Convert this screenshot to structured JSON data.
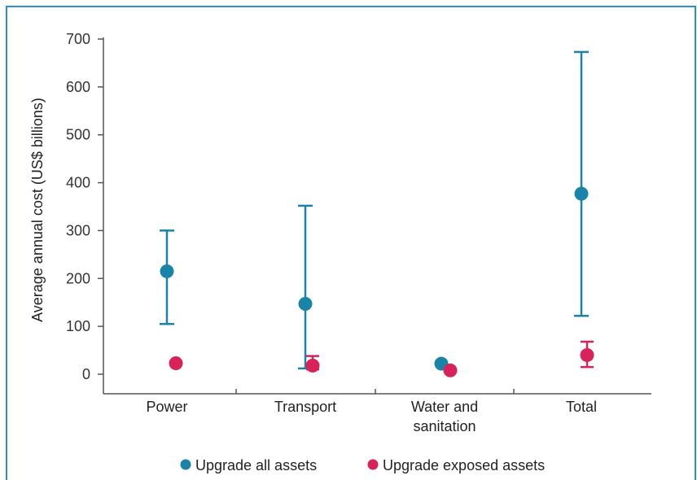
{
  "chart_data": {
    "type": "scatter",
    "ylabel": "Average annual cost (US$ billions)",
    "ylim": [
      0,
      700
    ],
    "yticks": [
      0,
      100,
      200,
      300,
      400,
      500,
      600,
      700
    ],
    "categories": [
      "Power",
      "Transport",
      "Water and sanitation",
      "Total"
    ],
    "category_lines": [
      [
        "Power"
      ],
      [
        "Transport"
      ],
      [
        "Water and",
        "sanitation"
      ],
      [
        "Total"
      ]
    ],
    "grid": false,
    "legend_position": "bottom",
    "series": [
      {
        "name": "Upgrade all assets",
        "color": "#1a84a8",
        "values": [
          215,
          147,
          22,
          377
        ],
        "low": [
          105,
          12,
          null,
          122
        ],
        "high": [
          300,
          352,
          null,
          673
        ]
      },
      {
        "name": "Upgrade exposed assets",
        "color": "#d8235a",
        "values": [
          23,
          18,
          8,
          40
        ],
        "low": [
          null,
          10,
          null,
          15
        ],
        "high": [
          null,
          38,
          null,
          68
        ]
      }
    ]
  }
}
